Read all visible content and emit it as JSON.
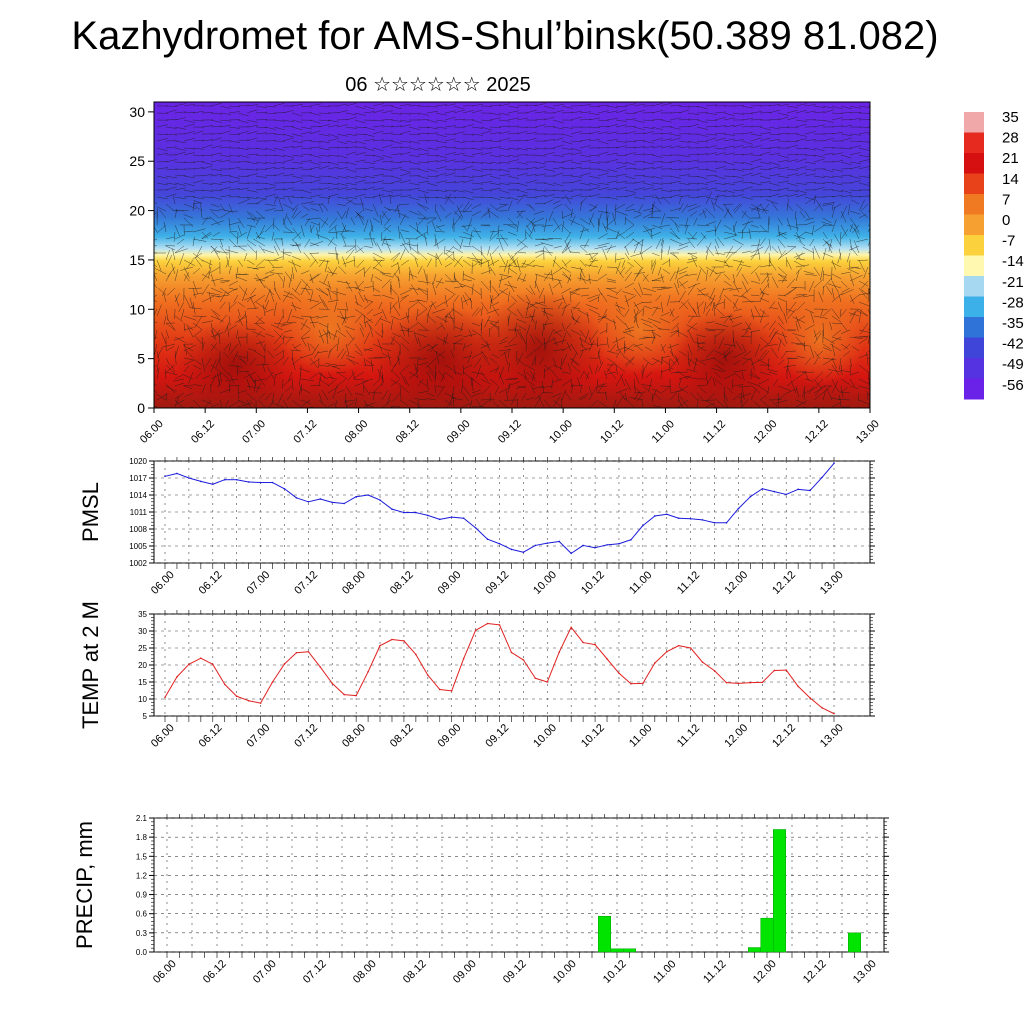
{
  "title": "Kazhydromet for AMS-Shul’binsk(50.389 81.082)",
  "subtitle": "06 ☆☆☆☆☆☆ 2025",
  "time_labels": [
    "06.00",
    "06.12",
    "07.00",
    "07.12",
    "08.00",
    "08.12",
    "09.00",
    "09.12",
    "10.00",
    "10.12",
    "11.00",
    "11.12",
    "12.00",
    "12.12",
    "13.00"
  ],
  "chart_data": [
    {
      "type": "heatmap",
      "title": "",
      "xlabel": "",
      "ylabel": "",
      "ylim": [
        0,
        31
      ],
      "yticks": [
        0,
        5,
        10,
        15,
        20,
        25,
        30
      ],
      "colorbar": {
        "labels": [
          "35",
          "28",
          "21",
          "14",
          "7",
          "0",
          "-7",
          "-14",
          "-21",
          "-28",
          "-35",
          "-42",
          "-49",
          "-56"
        ],
        "colors": [
          "#f0a8a8",
          "#e62a20",
          "#d60f10",
          "#e8421a",
          "#f07a22",
          "#f5a031",
          "#fbd23d",
          "#fff8b0",
          "#a6d8f2",
          "#3cb0e8",
          "#2f72d8",
          "#3e45d8",
          "#5533e0",
          "#6a22e8"
        ]
      },
      "overlay": "wind barbs"
    },
    {
      "type": "line",
      "ylabel": "PMSL",
      "ylim": [
        1002,
        1020
      ],
      "yticks": [
        1002,
        1005,
        1008,
        1011,
        1014,
        1017,
        1020
      ],
      "color": "#1a1adb",
      "x_hours": [
        0,
        3,
        6,
        9,
        12,
        15,
        18,
        21,
        24,
        27,
        30,
        33,
        36,
        39,
        42,
        45,
        48,
        51,
        54,
        57,
        60,
        63,
        66,
        69,
        72,
        75,
        78,
        81,
        84,
        87,
        90,
        93,
        96,
        99,
        102,
        105,
        108,
        111,
        114,
        117,
        120,
        123,
        126,
        129,
        132,
        135,
        138,
        141,
        144,
        147,
        150,
        153,
        156,
        159,
        162,
        165,
        168
      ],
      "values": [
        1017.3,
        1017.8,
        1017.0,
        1016.4,
        1015.9,
        1016.7,
        1016.7,
        1016.3,
        1016.2,
        1016.2,
        1015.1,
        1013.5,
        1012.8,
        1013.3,
        1012.7,
        1012.5,
        1013.7,
        1014.0,
        1013.1,
        1011.5,
        1010.9,
        1010.9,
        1010.4,
        1009.7,
        1010.1,
        1009.9,
        1008.2,
        1006.2,
        1005.4,
        1004.4,
        1003.9,
        1005.1,
        1005.5,
        1005.8,
        1003.7,
        1005.1,
        1004.7,
        1005.2,
        1005.4,
        1006.1,
        1008.6,
        1010.3,
        1010.6,
        1009.9,
        1009.8,
        1009.6,
        1009.1,
        1009.1,
        1011.6,
        1013.7,
        1015.1,
        1014.6,
        1014.1,
        1015.0,
        1014.8,
        1017.1,
        1019.6
      ]
    },
    {
      "type": "line",
      "ylabel": "TEMP at 2 M",
      "ylim": [
        5,
        35
      ],
      "yticks": [
        5,
        10,
        15,
        20,
        25,
        30,
        35
      ],
      "color": "#e02020",
      "x_hours": [
        0,
        3,
        6,
        9,
        12,
        15,
        18,
        21,
        24,
        27,
        30,
        33,
        36,
        39,
        42,
        45,
        48,
        51,
        54,
        57,
        60,
        63,
        66,
        69,
        72,
        75,
        78,
        81,
        84,
        87,
        90,
        93,
        96,
        99,
        102,
        105,
        108,
        111,
        114,
        117,
        120,
        123,
        126,
        129,
        132,
        135,
        138,
        141,
        144,
        147,
        150,
        153,
        156,
        159,
        162,
        165,
        168
      ],
      "values": [
        10.5,
        16.5,
        20.2,
        22.0,
        20.2,
        14.3,
        10.8,
        9.5,
        8.8,
        15.0,
        20.3,
        23.6,
        23.9,
        19.4,
        14.6,
        11.3,
        11.0,
        18.0,
        25.7,
        27.5,
        27.1,
        23.1,
        17.0,
        12.8,
        12.4,
        21.9,
        30.2,
        32.2,
        31.8,
        23.7,
        21.5,
        16.1,
        15.0,
        23.8,
        31.1,
        26.6,
        26.0,
        21.8,
        17.6,
        14.5,
        14.6,
        20.6,
        23.9,
        25.7,
        25.0,
        20.8,
        18.3,
        14.8,
        14.6,
        14.8,
        14.9,
        18.4,
        18.5,
        13.7,
        10.3,
        7.4,
        5.7
      ]
    },
    {
      "type": "bar",
      "ylabel": "PRECIP, mm",
      "ylim": [
        0,
        2.1
      ],
      "yticks": [
        "0.0",
        "0.3",
        "0.6",
        "0.9",
        "1.2",
        "1.5",
        "1.8",
        "2.1"
      ],
      "color": "#00e400",
      "x_hours": [
        105,
        108,
        111,
        141,
        144,
        147,
        165
      ],
      "values": [
        0.56,
        0.05,
        0.05,
        0.07,
        0.53,
        1.92,
        0.3
      ]
    }
  ]
}
